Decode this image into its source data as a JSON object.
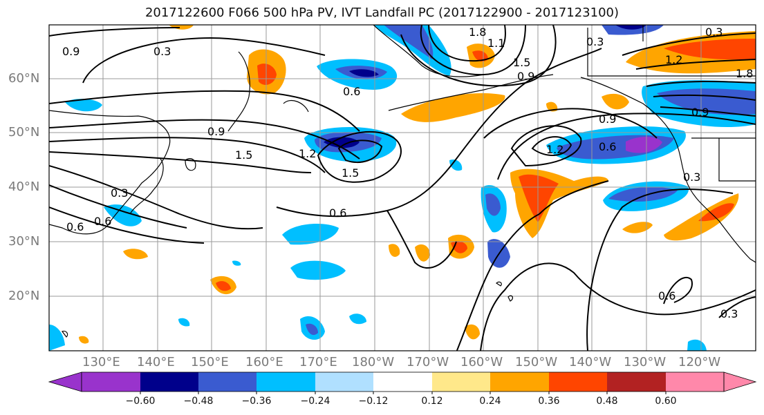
{
  "title": "2017122600 F066 500 hPa PV, IVT Landfall PC (2017122900 - 2017123100)",
  "lat_labels": [
    "20°N",
    "30°N",
    "40°N",
    "50°N",
    "60°N"
  ],
  "lon_labels": [
    "130°E",
    "140°E",
    "150°E",
    "160°E",
    "170°E",
    "180°W",
    "170°W",
    "160°W",
    "150°W",
    "140°W",
    "130°W",
    "120°W"
  ],
  "colorbar": {
    "ticks": [
      "−0.60",
      "−0.48",
      "−0.36",
      "−0.24",
      "−0.12",
      "0.12",
      "0.24",
      "0.36",
      "0.48",
      "0.60"
    ],
    "colors": [
      "#9933cc",
      "#00008b",
      "#3a5bd0",
      "#00bfff",
      "#b0e0ff",
      "#ffffff",
      "#ffe88a",
      "#ffa500",
      "#ff4500",
      "#b22222",
      "#ff88aa"
    ]
  },
  "contour_labels": [
    "0.9",
    "0.3",
    "1.8",
    "1.1",
    "1.5",
    "0.9",
    "0.3",
    "0.6",
    "0.9",
    "1.5",
    "1.2",
    "1.5",
    "0.3",
    "0.6",
    "0.6",
    "0.9",
    "0.6",
    "0.3",
    "0.6",
    "0.3",
    "1.2",
    "1.8",
    "0.9",
    "0.3",
    "0.6",
    "1.2"
  ]
}
